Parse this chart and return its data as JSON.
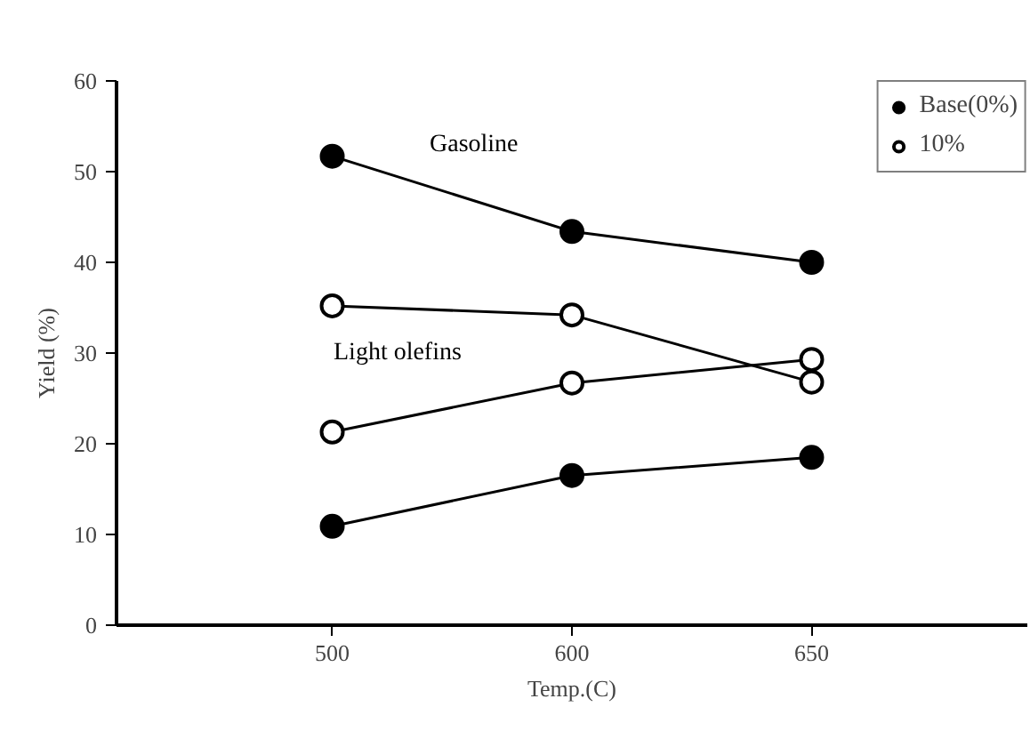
{
  "chart_data": {
    "type": "line",
    "xlabel": "Temp.(C)",
    "ylabel": "Yield (%)",
    "categories": [
      "500",
      "600",
      "650"
    ],
    "ylim": [
      0,
      60
    ],
    "yticks": [
      0,
      10,
      20,
      30,
      40,
      50,
      60
    ],
    "marker": "circle",
    "grid": false,
    "legend": "top right",
    "series": [
      {
        "name": "Base(0%)",
        "color": "#000000",
        "values": [
          51.7,
          43.4,
          40.0
        ]
      },
      {
        "name": "10%",
        "color": "#000000",
        "colors": [
          "#ffffff",
          "#ffffff",
          "#ffffff"
        ],
        "values": [
          35.2,
          34.2,
          26.8
        ]
      },
      {
        "color": "#000000",
        "colors": [
          "#ffffff",
          "#ffffff",
          "#ffffff"
        ],
        "values": [
          21.3,
          26.7,
          29.3
        ]
      },
      {
        "color": "#000000",
        "values": [
          10.9,
          16.5,
          18.5
        ]
      }
    ],
    "annotations": [
      "Gasoline",
      "Light olefins"
    ]
  }
}
